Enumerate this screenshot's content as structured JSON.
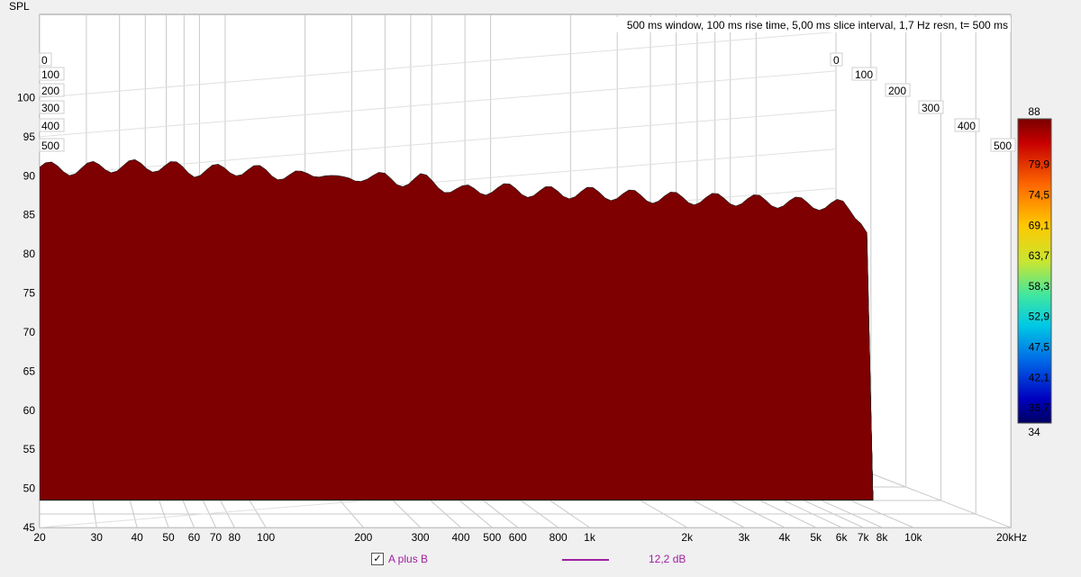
{
  "chart_data": {
    "type": "area",
    "subtype": "waterfall",
    "title": "500 ms window, 100 ms rise time, 5,00 ms slice interval, 1,7 Hz resn, t= 500 ms",
    "ylabel": "SPL",
    "xlabel": "",
    "x_scale": "log",
    "xlim": [
      20,
      20000
    ],
    "ylim": [
      45,
      105
    ],
    "x_ticks": [
      20,
      30,
      40,
      50,
      60,
      70,
      80,
      100,
      200,
      300,
      400,
      500,
      600,
      800,
      1000,
      2000,
      3000,
      4000,
      5000,
      6000,
      7000,
      8000,
      10000,
      20000
    ],
    "x_tick_labels": [
      "20",
      "30",
      "40",
      "50",
      "60",
      "70",
      "80",
      "100",
      "200",
      "300",
      "400",
      "500",
      "600",
      "800",
      "1k",
      "2k",
      "3k",
      "4k",
      "5k",
      "6k",
      "7k",
      "8k",
      "10k",
      "20kHz"
    ],
    "y_tick_labels": [
      "100",
      "95",
      "90",
      "85",
      "80",
      "75",
      "70",
      "65",
      "60",
      "55",
      "50",
      "45"
    ],
    "z_axis_labels": [
      "0",
      "100",
      "200",
      "300",
      "400",
      "500"
    ],
    "z_unit": "ms",
    "colorbar": {
      "min": 34,
      "max": 88,
      "tick_labels": [
        "88",
        "79,9",
        "74,5",
        "69,1",
        "63,7",
        "58,3",
        "52,9",
        "47,5",
        "42,1",
        "36,7",
        "34"
      ]
    },
    "front_slice": {
      "t_ms": 0,
      "x": [
        20,
        25,
        30,
        40,
        50,
        60,
        80,
        100,
        130,
        150,
        170,
        200,
        250,
        300,
        400,
        500,
        700,
        1000,
        1500,
        2000,
        3000,
        4000,
        5000,
        6000,
        7000,
        7500
      ],
      "y": [
        91.1,
        90.8,
        91.1,
        91.3,
        91.2,
        90.6,
        90.8,
        90.5,
        89.8,
        90.8,
        89.0,
        90.2,
        89.3,
        89.6,
        88.0,
        88.4,
        87.9,
        87.8,
        87.3,
        87.1,
        86.9,
        86.6,
        86.4,
        86.2,
        84.5,
        81.0
      ]
    },
    "grid": true,
    "legend": "bottom"
  },
  "legend": {
    "checkbox": "✓",
    "series_name": "A plus B",
    "value": "12,2 dB",
    "color": "#a020a0"
  },
  "colors": {
    "background": "#f0f0f0",
    "plot_bg": "#ffffff"
  }
}
